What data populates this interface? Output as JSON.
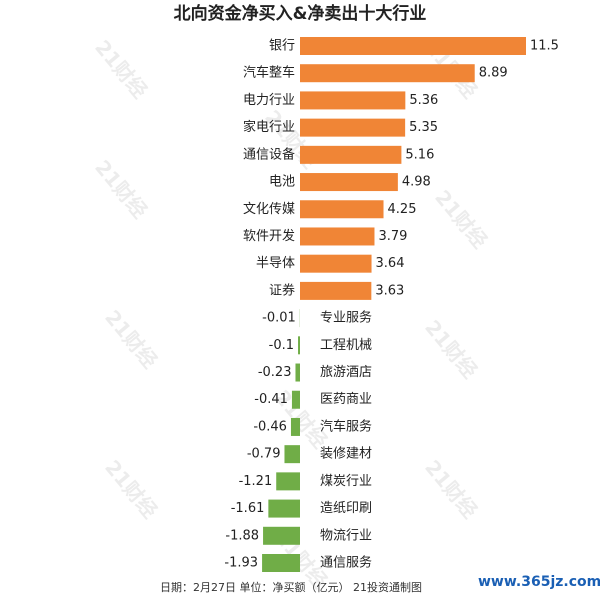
{
  "chart_data": {
    "type": "bar",
    "orientation": "horizontal",
    "title": "北向资金净买入&净卖出十大行业",
    "categories": [
      "银行",
      "汽车整车",
      "电力行业",
      "家电行业",
      "通信设备",
      "电池",
      "文化传媒",
      "软件开发",
      "半导体",
      "证券",
      "专业服务",
      "工程机械",
      "旅游酒店",
      "医药商业",
      "汽车服务",
      "装修建材",
      "煤炭行业",
      "造纸印刷",
      "物流行业",
      "通信服务"
    ],
    "values": [
      11.5,
      8.89,
      5.36,
      5.35,
      5.16,
      4.98,
      4.25,
      3.79,
      3.64,
      3.63,
      -0.01,
      -0.1,
      -0.23,
      -0.41,
      -0.46,
      -0.79,
      -1.21,
      -1.61,
      -1.88,
      -1.93
    ],
    "positive_color": "#f08536",
    "negative_color": "#70ad47",
    "footnote": "日期：2月27日 单位：净买额（亿元） 21投资通制图",
    "watermark": "21财经",
    "site": "www.365jz.com"
  }
}
